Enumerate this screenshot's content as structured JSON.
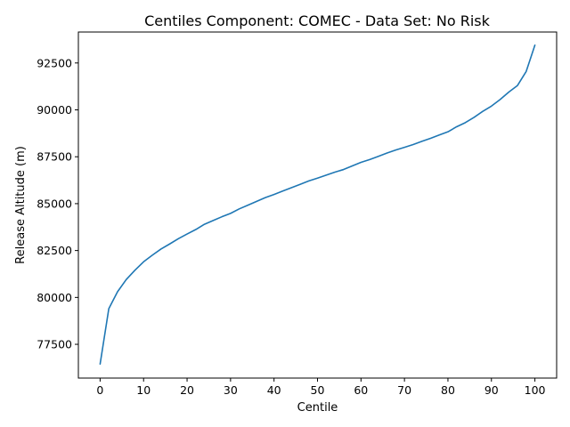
{
  "chart_data": {
    "type": "line",
    "title": "Centiles Component: COMEC - Data Set: No Risk",
    "xlabel": "Centile",
    "ylabel": "Release Altitude (m)",
    "xlim": [
      -5,
      105
    ],
    "ylim": [
      75700,
      94150
    ],
    "x_ticks": [
      0,
      10,
      20,
      30,
      40,
      50,
      60,
      70,
      80,
      90,
      100
    ],
    "y_ticks": [
      77500,
      80000,
      82500,
      85000,
      87500,
      90000,
      92500
    ],
    "grid": false,
    "legend": "none",
    "series": [
      {
        "color": "#1f77b4",
        "x": [
          0,
          2,
          4,
          6,
          8,
          10,
          12,
          14,
          16,
          18,
          20,
          22,
          24,
          26,
          28,
          30,
          32,
          34,
          36,
          38,
          40,
          42,
          44,
          46,
          48,
          50,
          52,
          54,
          56,
          58,
          60,
          62,
          64,
          66,
          68,
          70,
          72,
          74,
          76,
          78,
          80,
          82,
          84,
          86,
          88,
          90,
          92,
          94,
          96,
          98,
          100
        ],
        "y": [
          76450,
          79400,
          80300,
          80950,
          81450,
          81900,
          82250,
          82580,
          82850,
          83130,
          83380,
          83620,
          83900,
          84100,
          84300,
          84480,
          84720,
          84920,
          85120,
          85320,
          85490,
          85670,
          85850,
          86030,
          86210,
          86360,
          86520,
          86680,
          86820,
          87010,
          87200,
          87350,
          87520,
          87700,
          87860,
          88000,
          88150,
          88320,
          88480,
          88660,
          88830,
          89100,
          89320,
          89600,
          89920,
          90200,
          90550,
          90950,
          91300,
          92050,
          93450
        ]
      }
    ]
  }
}
